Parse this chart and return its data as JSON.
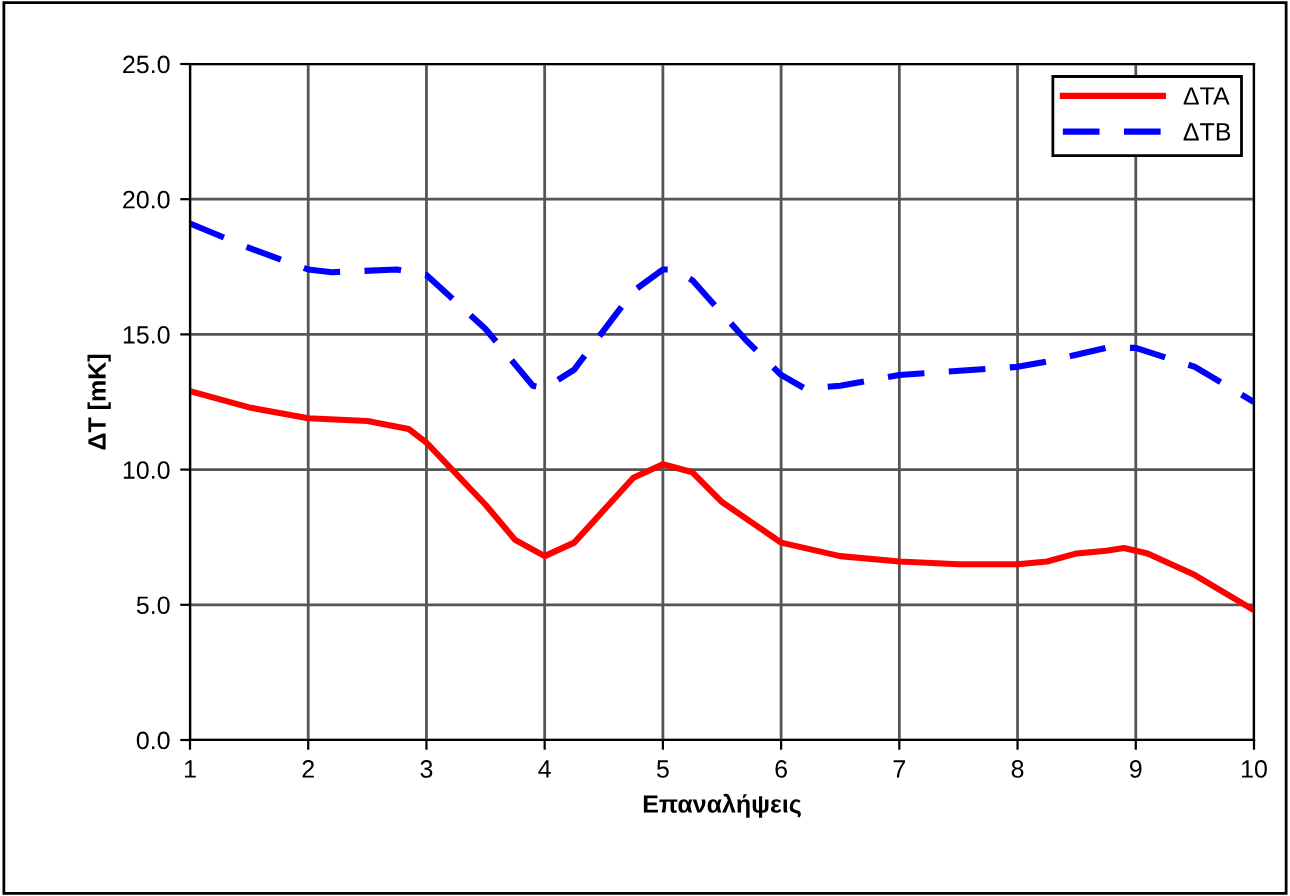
{
  "chart_data": {
    "type": "line",
    "xlabel": "Επαναλήψεις",
    "ylabel": "ΔT [mK]",
    "xlim": [
      1,
      10
    ],
    "xticks": [
      1,
      2,
      3,
      4,
      5,
      6,
      7,
      8,
      9,
      10
    ],
    "ylim": [
      0,
      25
    ],
    "yticks": [
      {
        "value": 0,
        "label": "0.0"
      },
      {
        "value": 5,
        "label": "5.0"
      },
      {
        "value": 10,
        "label": "10.0"
      },
      {
        "value": 15,
        "label": "15.0"
      },
      {
        "value": 20,
        "label": "20.0"
      },
      {
        "value": 25,
        "label": "25.0"
      }
    ],
    "grid": true,
    "legend": "top right",
    "marker": "none",
    "series": [
      {
        "name": "ΔTA",
        "color": "#ff0000",
        "line_style": "solid",
        "x": [
          1,
          1.5,
          2,
          2.5,
          2.85,
          3,
          3.5,
          3.75,
          4,
          4.25,
          4.75,
          5,
          5.25,
          5.5,
          6,
          6.5,
          7,
          7.5,
          8,
          8.25,
          8.5,
          8.75,
          8.9,
          9.1,
          9.5,
          10
        ],
        "values": [
          12.9,
          12.3,
          11.9,
          11.8,
          11.5,
          11.0,
          8.7,
          7.4,
          6.8,
          7.3,
          9.7,
          10.2,
          9.9,
          8.8,
          7.3,
          6.8,
          6.6,
          6.5,
          6.5,
          6.6,
          6.9,
          7.0,
          7.1,
          6.9,
          6.1,
          4.8
        ]
      },
      {
        "name": "ΔTB",
        "color": "#0000ff",
        "line_style": "dashed",
        "x": [
          1,
          1.5,
          2,
          2.2,
          2.75,
          3,
          3.5,
          3.9,
          4,
          4.25,
          4.75,
          5,
          5.1,
          5.25,
          5.7,
          6,
          6.2,
          6.5,
          7,
          8,
          8.25,
          8.75,
          9,
          9.5,
          10
        ],
        "values": [
          19.1,
          18.2,
          17.4,
          17.3,
          17.4,
          17.2,
          15.2,
          13.1,
          13.0,
          13.7,
          16.6,
          17.4,
          17.4,
          17.0,
          14.8,
          13.5,
          13.0,
          13.1,
          13.5,
          13.8,
          14.0,
          14.5,
          14.5,
          13.8,
          12.5
        ]
      }
    ]
  }
}
